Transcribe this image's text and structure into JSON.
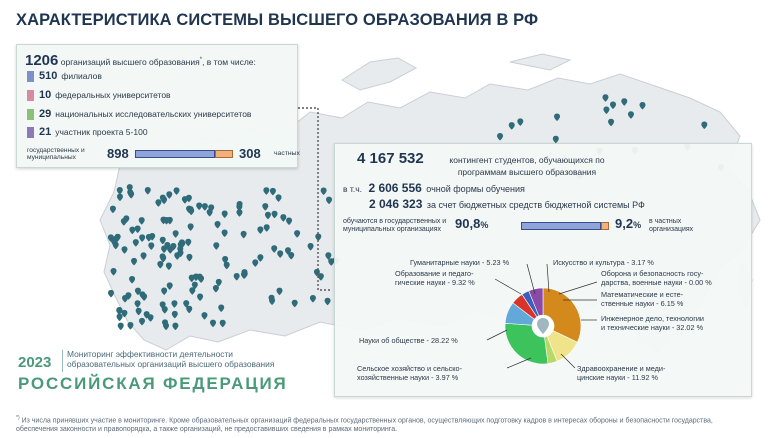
{
  "title": "ХАРАКТЕРИСТИКА СИСТЕМЫ ВЫСШЕГО ОБРАЗОВАНИЯ В РФ",
  "orgs": {
    "total": "1206",
    "total_text": " организаций высшего образования",
    "total_mark": "*",
    "total_suffix": ", в том числе:",
    "rows": [
      {
        "value": "510",
        "label": "филиалов",
        "color": "#7e90c8"
      },
      {
        "value": "10",
        "label": "федеральных университетов",
        "color": "#d68aa4"
      },
      {
        "value": "29",
        "label": "национальных исследовательских университетов",
        "color": "#8cc07a"
      },
      {
        "value": "21",
        "label": "участник проекта 5-100",
        "color": "#8c7ab8"
      }
    ],
    "public_label": "государственных и муниципальных",
    "public_value": "898",
    "private_value": "308",
    "private_label": "частных"
  },
  "students": {
    "total": "4 167 532",
    "total_text": "контингент студентов, обучающихся по программам высшего образования",
    "incl_prefix": "в т.ч.",
    "fulltime": "2 606 556",
    "fulltime_text": "очной формы обучения",
    "budget": "2 046 323",
    "budget_text": "за счет бюджетных средств бюджетной системы РФ",
    "public_label": "обучаются в государственных и муниципальных организациях",
    "public_pct": "90,8",
    "pct_sign": "%",
    "private_pct": "9,2",
    "private_label": "в частных организациях"
  },
  "chart_data": {
    "type": "pie",
    "donut": true,
    "slices": [
      {
        "label": "Инженерное дело, технологии и технические науки - 32.02 %",
        "value": 32.02,
        "color": "#d4891c"
      },
      {
        "label": "Здравоохранение и медицинские науки - 11.92 %",
        "value": 11.92,
        "color": "#f0e48a"
      },
      {
        "label": "Сельское хозяйство и сельскохозяйственные науки - 3.97 %",
        "value": 3.97,
        "color": "#b8d86a"
      },
      {
        "label": "Науки об обществе - 28.22 %",
        "value": 28.22,
        "color": "#3cc35c"
      },
      {
        "label": "Образование и педагогические науки - 9.32 %",
        "value": 9.32,
        "color": "#62a8d8"
      },
      {
        "label": "Гуманитарные науки - 5.23 %",
        "value": 5.23,
        "color": "#d8342a"
      },
      {
        "label": "Искусство и культура - 3.17 %",
        "value": 3.17,
        "color": "#3a5ec0"
      },
      {
        "label": "Оборона и безопасность государства, военные науки - 0.00 %",
        "value": 0.0,
        "color": "#7a6a3a"
      },
      {
        "label": "Математические и естественные науки - 6.15 %",
        "value": 6.15,
        "color": "#8a4aa8"
      }
    ]
  },
  "pie_labels": {
    "humanities": "Гуманитарные науки - 5.23 %",
    "education": "Образование и педаго-\nгические науки - 9.32 %",
    "arts": "Искусство и культура - 3.17 %",
    "defense": "Оборона и безопасность госу-\nдарства, военные науки - 0.00 %",
    "math": "Математические и есте-\nственные науки - 6.15 %",
    "engineering": "Инженерное дело, технологии\nи технические науки - 32.02 %",
    "social": "Науки об обществе - 28.22 %",
    "agri": "Сельское хозяйство и сельско-\nхозяйственные науки - 3.97 %",
    "health": "Здравоохранение и меди-\nцинские науки - 11.92 %"
  },
  "brand": {
    "year": "2023",
    "subtitle": "Мониторинг эффективности деятельности образовательных организаций высшего образования",
    "country": "РОССИЙСКАЯ ФЕДЕРАЦИЯ"
  },
  "footnote": {
    "mark": "*)",
    "text": " Из числа принявших участие в мониторинге. Кроме образовательных организаций федеральных государственных органов, осуществляющих подготовку кадров в интересах обороны и безопасности государства, обеспечения законности и правопорядка, а также организаций, не предоставивших сведения в рамках мониторинга."
  },
  "colors": {
    "map_fill": "#e8ebee",
    "map_stroke": "#c9cfd6",
    "pin": "#2f6b78",
    "accent": "#4a9a7a"
  }
}
